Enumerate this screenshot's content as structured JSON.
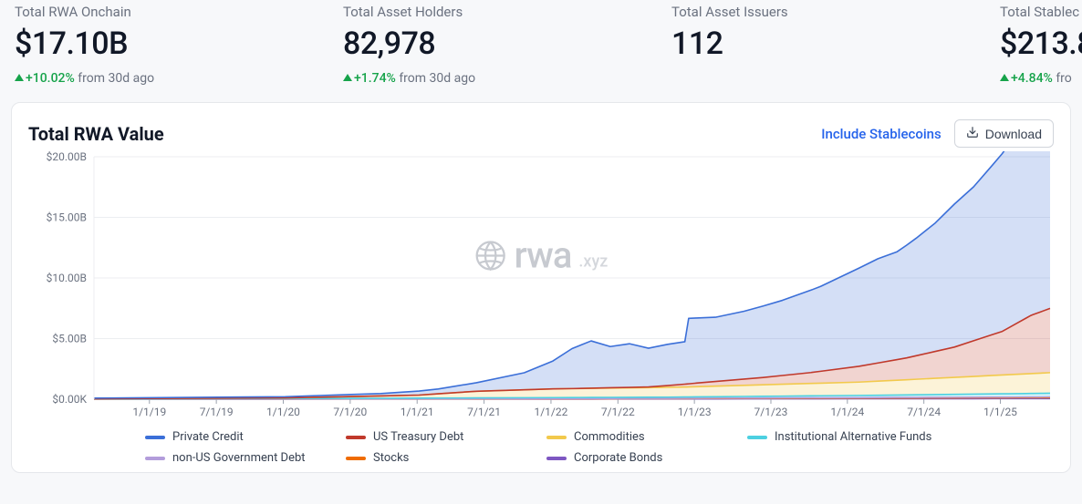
{
  "stats": [
    {
      "label": "Total RWA Onchain",
      "value": "$17.10B",
      "delta": "+10.02%",
      "delta_suffix": " from 30d ago",
      "show_delta": true
    },
    {
      "label": "Total Asset Holders",
      "value": "82,978",
      "delta": "+1.74%",
      "delta_suffix": " from 30d ago",
      "show_delta": true
    },
    {
      "label": "Total Asset Issuers",
      "value": "112",
      "delta": "",
      "delta_suffix": "",
      "show_delta": false
    },
    {
      "label": "Total Stablec",
      "value": "$213.8",
      "delta": "+4.84%",
      "delta_suffix": " fro",
      "show_delta": true
    }
  ],
  "chart": {
    "title": "Total RWA Value",
    "include_link": "Include Stablecoins",
    "download_label": "Download",
    "type": "stacked-area",
    "watermark": {
      "main": "rwa",
      "sub": ".xyz"
    },
    "background_color": "#ffffff",
    "grid_color": "#eceef1",
    "axis_text_color": "#6b7280",
    "axis_fontsize": 12,
    "y_axis": {
      "ticks": [
        "$0.00K",
        "$5.00B",
        "$10.00B",
        "$15.00B",
        "$20.00B"
      ],
      "values": [
        0,
        5,
        10,
        15,
        20
      ],
      "min": 0,
      "max": 20
    },
    "x_axis": {
      "labels": [
        "1/1/19",
        "7/1/19",
        "1/1/20",
        "7/1/20",
        "1/1/21",
        "7/1/21",
        "1/1/22",
        "7/1/22",
        "1/1/23",
        "7/1/23",
        "1/1/24",
        "7/1/24",
        "1/1/25"
      ],
      "positions": [
        0.058,
        0.128,
        0.198,
        0.268,
        0.338,
        0.408,
        0.478,
        0.548,
        0.628,
        0.708,
        0.788,
        0.868,
        0.948
      ]
    },
    "series": [
      {
        "name": "Corporate Bonds",
        "color": "#7e57c2",
        "points": [
          [
            0.0,
            0.0
          ],
          [
            0.6,
            0.02
          ],
          [
            0.8,
            0.04
          ],
          [
            1.0,
            0.05
          ]
        ]
      },
      {
        "name": "Stocks",
        "color": "#ef6c00",
        "points": [
          [
            0.0,
            0.0
          ],
          [
            0.6,
            0.03
          ],
          [
            0.8,
            0.05
          ],
          [
            1.0,
            0.08
          ]
        ]
      },
      {
        "name": "non-US Government Debt",
        "color": "#b39ddb",
        "points": [
          [
            0.0,
            0.0
          ],
          [
            0.6,
            0.02
          ],
          [
            0.8,
            0.04
          ],
          [
            1.0,
            0.06
          ]
        ]
      },
      {
        "name": "Institutional Alternative Funds",
        "color": "#4dd0e1",
        "points": [
          [
            0.0,
            0.02
          ],
          [
            0.3,
            0.04
          ],
          [
            0.6,
            0.1
          ],
          [
            0.8,
            0.18
          ],
          [
            1.0,
            0.3
          ]
        ]
      },
      {
        "name": "Commodities",
        "color": "#f2c94c",
        "points": [
          [
            0.0,
            0.02
          ],
          [
            0.2,
            0.05
          ],
          [
            0.34,
            0.25
          ],
          [
            0.4,
            0.55
          ],
          [
            0.48,
            0.72
          ],
          [
            0.56,
            0.78
          ],
          [
            0.62,
            0.82
          ],
          [
            0.7,
            0.95
          ],
          [
            0.8,
            1.1
          ],
          [
            0.9,
            1.4
          ],
          [
            1.0,
            1.7
          ]
        ]
      },
      {
        "name": "US Treasury Debt",
        "color": "#c0392b",
        "points": [
          [
            0.0,
            0.0
          ],
          [
            0.5,
            0.0
          ],
          [
            0.58,
            0.05
          ],
          [
            0.63,
            0.3
          ],
          [
            0.7,
            0.6
          ],
          [
            0.75,
            0.9
          ],
          [
            0.8,
            1.3
          ],
          [
            0.85,
            1.8
          ],
          [
            0.9,
            2.5
          ],
          [
            0.95,
            3.6
          ],
          [
            0.98,
            4.8
          ],
          [
            1.0,
            5.3
          ]
        ]
      },
      {
        "name": "Private Credit",
        "color": "#3b6fd8",
        "points": [
          [
            0.0,
            0.05
          ],
          [
            0.2,
            0.1
          ],
          [
            0.3,
            0.2
          ],
          [
            0.36,
            0.4
          ],
          [
            0.4,
            0.7
          ],
          [
            0.45,
            1.4
          ],
          [
            0.48,
            2.3
          ],
          [
            0.5,
            3.3
          ],
          [
            0.52,
            3.9
          ],
          [
            0.54,
            3.4
          ],
          [
            0.56,
            3.6
          ],
          [
            0.58,
            3.2
          ],
          [
            0.6,
            3.4
          ],
          [
            0.618,
            3.5
          ],
          [
            0.622,
            5.4
          ],
          [
            0.65,
            5.3
          ],
          [
            0.68,
            5.6
          ],
          [
            0.72,
            6.2
          ],
          [
            0.76,
            7.0
          ],
          [
            0.8,
            8.1
          ],
          [
            0.82,
            8.6
          ],
          [
            0.84,
            8.9
          ],
          [
            0.86,
            9.7
          ],
          [
            0.88,
            10.6
          ],
          [
            0.9,
            11.8
          ],
          [
            0.92,
            12.7
          ],
          [
            0.94,
            14.0
          ],
          [
            0.955,
            15.0
          ],
          [
            0.965,
            15.6
          ],
          [
            0.975,
            17.3
          ],
          [
            0.982,
            16.4
          ],
          [
            0.99,
            17.0
          ],
          [
            1.0,
            14.8
          ]
        ]
      }
    ],
    "legend_order": [
      [
        "Private Credit",
        "#3b6fd8"
      ],
      [
        "US Treasury Debt",
        "#c0392b"
      ],
      [
        "Commodities",
        "#f2c94c"
      ],
      [
        "Institutional Alternative Funds",
        "#4dd0e1"
      ],
      [
        "non-US Government Debt",
        "#b39ddb"
      ],
      [
        "Stocks",
        "#ef6c00"
      ],
      [
        "Corporate Bonds",
        "#7e57c2"
      ]
    ]
  }
}
